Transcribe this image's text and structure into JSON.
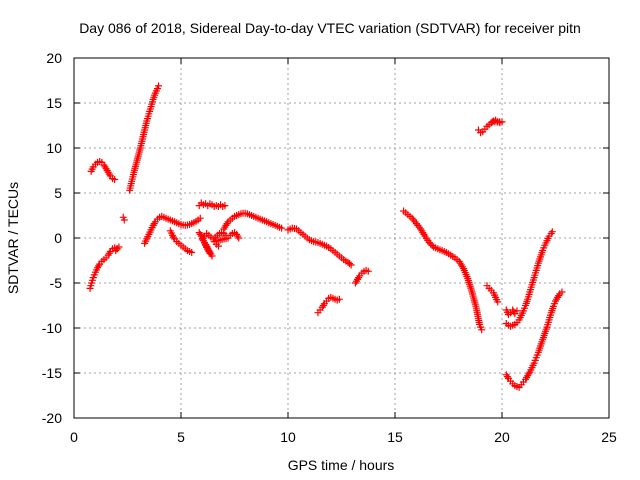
{
  "chart_data": {
    "type": "scatter",
    "title": "Day 086 of 2018, Sidereal Day-to-day VTEC variation (SDTVAR) for receiver pitn",
    "xlabel": "GPS time / hours",
    "ylabel": "SDTVAR / TECUs",
    "xlim": [
      0,
      25
    ],
    "ylim": [
      -20,
      20
    ],
    "xticks": [
      0,
      5,
      10,
      15,
      20,
      25
    ],
    "yticks": [
      -20,
      -15,
      -10,
      -5,
      0,
      5,
      10,
      15,
      20
    ],
    "xtick_labels": [
      "0",
      "5",
      "10",
      "15",
      "20",
      "25"
    ],
    "ytick_labels": [
      "-20",
      "-15",
      "-10",
      "-5",
      "0",
      "5",
      "10",
      "15",
      "20"
    ],
    "grid": true,
    "legend": "none",
    "marker": "plus",
    "color": "#ff0000",
    "series": [
      {
        "segments": [
          [
            [
              0.8,
              7.4
            ],
            [
              0.9,
              7.9
            ],
            [
              1.0,
              8.2
            ],
            [
              1.1,
              8.4
            ],
            [
              1.2,
              8.5
            ],
            [
              1.3,
              8.4
            ],
            [
              1.4,
              8.1
            ],
            [
              1.5,
              7.7
            ],
            [
              1.6,
              7.3
            ],
            [
              1.7,
              6.9
            ],
            [
              1.8,
              6.6
            ],
            [
              1.9,
              6.5
            ]
          ],
          [
            [
              0.75,
              -5.6
            ],
            [
              0.82,
              -5.0
            ],
            [
              0.9,
              -4.4
            ],
            [
              1.0,
              -3.8
            ],
            [
              1.1,
              -3.3
            ],
            [
              1.2,
              -2.9
            ],
            [
              1.3,
              -2.6
            ],
            [
              1.4,
              -2.4
            ],
            [
              1.5,
              -2.2
            ],
            [
              1.6,
              -1.9
            ],
            [
              1.7,
              -1.5
            ],
            [
              1.8,
              -1.2
            ],
            [
              1.9,
              -1.1
            ],
            [
              2.0,
              -1.2
            ],
            [
              2.1,
              -1.0
            ],
            [
              1.95,
              -1.4
            ]
          ],
          [
            [
              2.3,
              2.3
            ],
            [
              2.35,
              2.0
            ]
          ],
          [
            [
              2.6,
              5.3
            ],
            [
              2.7,
              6.3
            ],
            [
              2.8,
              7.3
            ],
            [
              2.9,
              8.2
            ],
            [
              3.0,
              9.1
            ],
            [
              3.1,
              10.0
            ],
            [
              3.2,
              11.0
            ],
            [
              3.3,
              12.0
            ],
            [
              3.4,
              13.0
            ],
            [
              3.5,
              13.8
            ],
            [
              3.6,
              14.6
            ],
            [
              3.7,
              15.4
            ],
            [
              3.8,
              16.1
            ],
            [
              3.9,
              16.6
            ],
            [
              3.95,
              16.9
            ]
          ],
          [
            [
              3.3,
              -0.6
            ],
            [
              3.4,
              -0.1
            ],
            [
              3.5,
              0.4
            ],
            [
              3.6,
              0.9
            ],
            [
              3.7,
              1.4
            ],
            [
              3.8,
              1.8
            ],
            [
              3.9,
              2.1
            ],
            [
              4.0,
              2.3
            ],
            [
              4.1,
              2.4
            ],
            [
              4.2,
              2.3
            ],
            [
              4.4,
              2.1
            ],
            [
              4.6,
              1.9
            ],
            [
              4.8,
              1.7
            ],
            [
              5.0,
              1.5
            ],
            [
              5.2,
              1.4
            ],
            [
              5.4,
              1.5
            ],
            [
              5.6,
              1.7
            ],
            [
              5.8,
              2.0
            ],
            [
              5.9,
              2.2
            ]
          ],
          [
            [
              4.5,
              0.8
            ],
            [
              4.6,
              0.3
            ],
            [
              4.7,
              -0.1
            ],
            [
              4.8,
              -0.4
            ],
            [
              4.9,
              -0.6
            ],
            [
              5.0,
              -0.8
            ],
            [
              5.1,
              -1.0
            ],
            [
              5.2,
              -1.2
            ],
            [
              5.3,
              -1.4
            ],
            [
              5.4,
              -1.5
            ],
            [
              5.5,
              -1.6
            ]
          ],
          [
            [
              5.85,
              3.6
            ],
            [
              5.95,
              3.9
            ],
            [
              6.05,
              3.7
            ],
            [
              6.15,
              3.8
            ],
            [
              6.25,
              3.6
            ],
            [
              6.35,
              3.8
            ],
            [
              6.45,
              3.7
            ],
            [
              6.55,
              3.5
            ],
            [
              6.65,
              3.6
            ],
            [
              6.75,
              3.5
            ],
            [
              6.85,
              3.7
            ],
            [
              6.95,
              3.5
            ],
            [
              7.05,
              3.6
            ]
          ],
          [
            [
              5.85,
              0.6
            ],
            [
              5.95,
              0.2
            ],
            [
              6.05,
              -0.3
            ],
            [
              6.15,
              -0.8
            ],
            [
              6.25,
              -1.3
            ],
            [
              6.35,
              -1.7
            ],
            [
              6.45,
              -2.0
            ],
            [
              6.1,
              -0.5
            ],
            [
              6.2,
              -1.0
            ]
          ],
          [
            [
              6.0,
              -0.2
            ],
            [
              6.1,
              0.2
            ],
            [
              6.2,
              0.5
            ],
            [
              6.3,
              0.3
            ],
            [
              6.4,
              0.1
            ],
            [
              6.5,
              -0.1
            ],
            [
              6.6,
              0.1
            ],
            [
              6.7,
              0.3
            ],
            [
              6.8,
              0.5
            ],
            [
              6.9,
              0.6
            ],
            [
              7.0,
              0.5
            ],
            [
              7.1,
              0.3
            ],
            [
              7.2,
              0.0
            ],
            [
              6.55,
              -0.4
            ],
            [
              6.65,
              -0.7
            ],
            [
              6.75,
              -0.9
            ]
          ],
          [
            [
              7.0,
              1.0
            ],
            [
              7.1,
              1.4
            ],
            [
              7.2,
              1.8
            ],
            [
              7.3,
              2.0
            ],
            [
              7.4,
              2.2
            ],
            [
              7.5,
              2.4
            ],
            [
              7.6,
              2.5
            ],
            [
              7.7,
              2.6
            ],
            [
              7.8,
              2.7
            ],
            [
              7.9,
              2.75
            ],
            [
              8.0,
              2.75
            ],
            [
              8.1,
              2.7
            ],
            [
              8.2,
              2.6
            ],
            [
              8.3,
              2.5
            ],
            [
              8.4,
              2.4
            ],
            [
              8.6,
              2.2
            ],
            [
              8.8,
              2.0
            ],
            [
              9.0,
              1.8
            ],
            [
              9.2,
              1.6
            ],
            [
              9.4,
              1.4
            ],
            [
              9.6,
              1.2
            ],
            [
              9.7,
              1.1
            ]
          ],
          [
            [
              7.3,
              0.3
            ],
            [
              7.4,
              0.5
            ],
            [
              7.5,
              0.6
            ],
            [
              7.6,
              0.4
            ],
            [
              7.7,
              0.0
            ]
          ],
          [
            [
              10.0,
              0.9
            ],
            [
              10.2,
              1.1
            ],
            [
              10.4,
              1.0
            ],
            [
              10.6,
              0.6
            ],
            [
              10.8,
              0.2
            ],
            [
              11.0,
              -0.2
            ],
            [
              11.2,
              -0.4
            ],
            [
              11.4,
              -0.5
            ],
            [
              11.6,
              -0.7
            ],
            [
              11.8,
              -0.9
            ],
            [
              12.0,
              -1.2
            ],
            [
              12.2,
              -1.6
            ],
            [
              12.4,
              -2.0
            ],
            [
              12.6,
              -2.4
            ],
            [
              12.8,
              -2.7
            ],
            [
              12.95,
              -3.0
            ]
          ],
          [
            [
              11.4,
              -8.3
            ],
            [
              11.5,
              -8.0
            ],
            [
              11.6,
              -7.7
            ],
            [
              11.7,
              -7.3
            ],
            [
              11.8,
              -7.0
            ],
            [
              11.9,
              -6.7
            ],
            [
              12.0,
              -6.6
            ],
            [
              12.1,
              -6.7
            ],
            [
              12.2,
              -6.8
            ],
            [
              12.3,
              -6.9
            ],
            [
              12.4,
              -6.8
            ]
          ],
          [
            [
              13.15,
              -5.0
            ],
            [
              13.25,
              -4.6
            ],
            [
              13.35,
              -4.2
            ],
            [
              13.45,
              -3.9
            ],
            [
              13.55,
              -3.7
            ],
            [
              13.65,
              -3.6
            ],
            [
              13.75,
              -3.7
            ]
          ],
          [
            [
              15.4,
              3.0
            ],
            [
              15.6,
              2.6
            ],
            [
              15.8,
              2.2
            ],
            [
              16.0,
              1.6
            ],
            [
              16.2,
              1.0
            ],
            [
              16.4,
              0.2
            ],
            [
              16.6,
              -0.5
            ],
            [
              16.8,
              -1.0
            ],
            [
              17.0,
              -1.2
            ],
            [
              17.2,
              -1.4
            ],
            [
              17.4,
              -1.6
            ],
            [
              17.6,
              -1.9
            ],
            [
              17.8,
              -2.2
            ],
            [
              18.0,
              -2.6
            ],
            [
              18.2,
              -3.4
            ],
            [
              18.4,
              -4.5
            ],
            [
              18.6,
              -6.0
            ],
            [
              18.8,
              -7.8
            ],
            [
              18.95,
              -9.6
            ],
            [
              19.05,
              -10.2
            ]
          ],
          [
            [
              18.9,
              12.0
            ],
            [
              19.0,
              11.7
            ],
            [
              19.1,
              11.8
            ],
            [
              19.2,
              12.1
            ],
            [
              19.3,
              12.4
            ],
            [
              19.4,
              12.6
            ],
            [
              19.5,
              12.8
            ],
            [
              19.6,
              13.0
            ],
            [
              19.7,
              13.1
            ],
            [
              19.8,
              12.9
            ],
            [
              19.9,
              12.8
            ],
            [
              20.0,
              12.9
            ],
            [
              19.55,
              12.9
            ]
          ],
          [
            [
              19.3,
              -5.3
            ],
            [
              19.4,
              -5.6
            ],
            [
              19.5,
              -5.8
            ],
            [
              19.6,
              -6.1
            ],
            [
              19.7,
              -6.6
            ],
            [
              19.8,
              -7.1
            ]
          ],
          [
            [
              20.2,
              -8.0
            ],
            [
              20.3,
              -8.5
            ],
            [
              20.4,
              -8.3
            ],
            [
              20.5,
              -8.0
            ],
            [
              20.6,
              -8.4
            ],
            [
              20.7,
              -8.1
            ]
          ],
          [
            [
              20.2,
              -9.5
            ],
            [
              20.3,
              -9.7
            ],
            [
              20.4,
              -9.8
            ],
            [
              20.5,
              -9.7
            ],
            [
              20.6,
              -9.6
            ],
            [
              20.7,
              -9.4
            ],
            [
              20.8,
              -9.1
            ],
            [
              20.9,
              -8.6
            ],
            [
              21.0,
              -8.1
            ],
            [
              21.1,
              -7.5
            ],
            [
              21.2,
              -6.8
            ],
            [
              21.3,
              -6.0
            ],
            [
              21.4,
              -5.2
            ],
            [
              21.5,
              -4.4
            ],
            [
              21.6,
              -3.6
            ],
            [
              21.7,
              -2.8
            ],
            [
              21.8,
              -2.1
            ],
            [
              21.9,
              -1.4
            ],
            [
              22.0,
              -0.8
            ],
            [
              22.1,
              -0.3
            ],
            [
              22.2,
              0.2
            ],
            [
              22.3,
              0.5
            ],
            [
              22.35,
              0.7
            ]
          ],
          [
            [
              20.2,
              -15.2
            ],
            [
              20.3,
              -15.6
            ],
            [
              20.4,
              -15.9
            ],
            [
              20.5,
              -16.2
            ],
            [
              20.6,
              -16.4
            ],
            [
              20.7,
              -16.5
            ],
            [
              20.8,
              -16.6
            ],
            [
              20.9,
              -16.3
            ],
            [
              21.0,
              -16.0
            ],
            [
              21.1,
              -15.7
            ],
            [
              21.2,
              -15.3
            ],
            [
              21.3,
              -14.9
            ],
            [
              21.4,
              -14.4
            ],
            [
              21.5,
              -13.9
            ],
            [
              21.6,
              -13.3
            ],
            [
              21.7,
              -12.7
            ],
            [
              21.8,
              -12.0
            ],
            [
              21.9,
              -11.3
            ],
            [
              22.0,
              -10.6
            ],
            [
              22.1,
              -9.9
            ],
            [
              22.2,
              -9.1
            ],
            [
              22.3,
              -8.3
            ],
            [
              22.4,
              -7.6
            ],
            [
              22.5,
              -7.0
            ],
            [
              22.6,
              -6.6
            ],
            [
              22.7,
              -6.2
            ],
            [
              22.8,
              -6.0
            ]
          ]
        ]
      }
    ]
  }
}
